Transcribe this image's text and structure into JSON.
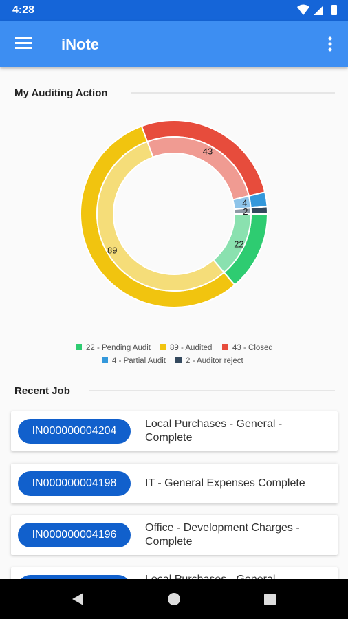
{
  "status_bar": {
    "time": "4:28"
  },
  "app_bar": {
    "title": "iNote"
  },
  "sections": {
    "audit": "My Auditing Action",
    "recent": "Recent Job"
  },
  "chart_data": {
    "type": "donut",
    "categories": [
      "22 - Pending Audit",
      "89 - Audited",
      "43 - Closed",
      "4 - Partial Audit",
      "2 - Auditor reject"
    ],
    "values": [
      22,
      89,
      43,
      4,
      2
    ],
    "colors": [
      "#2ecc71",
      "#f1c40f",
      "#e74c3c",
      "#3498db",
      "#34495e"
    ]
  },
  "jobs": [
    {
      "id": "IN000000004204",
      "title": "Local Purchases - General - Complete"
    },
    {
      "id": "IN000000004198",
      "title": "IT - General Expenses Complete"
    },
    {
      "id": "IN000000004196",
      "title": "Office - Development Charges - Complete"
    },
    {
      "title": "Local Purchases - General"
    }
  ]
}
